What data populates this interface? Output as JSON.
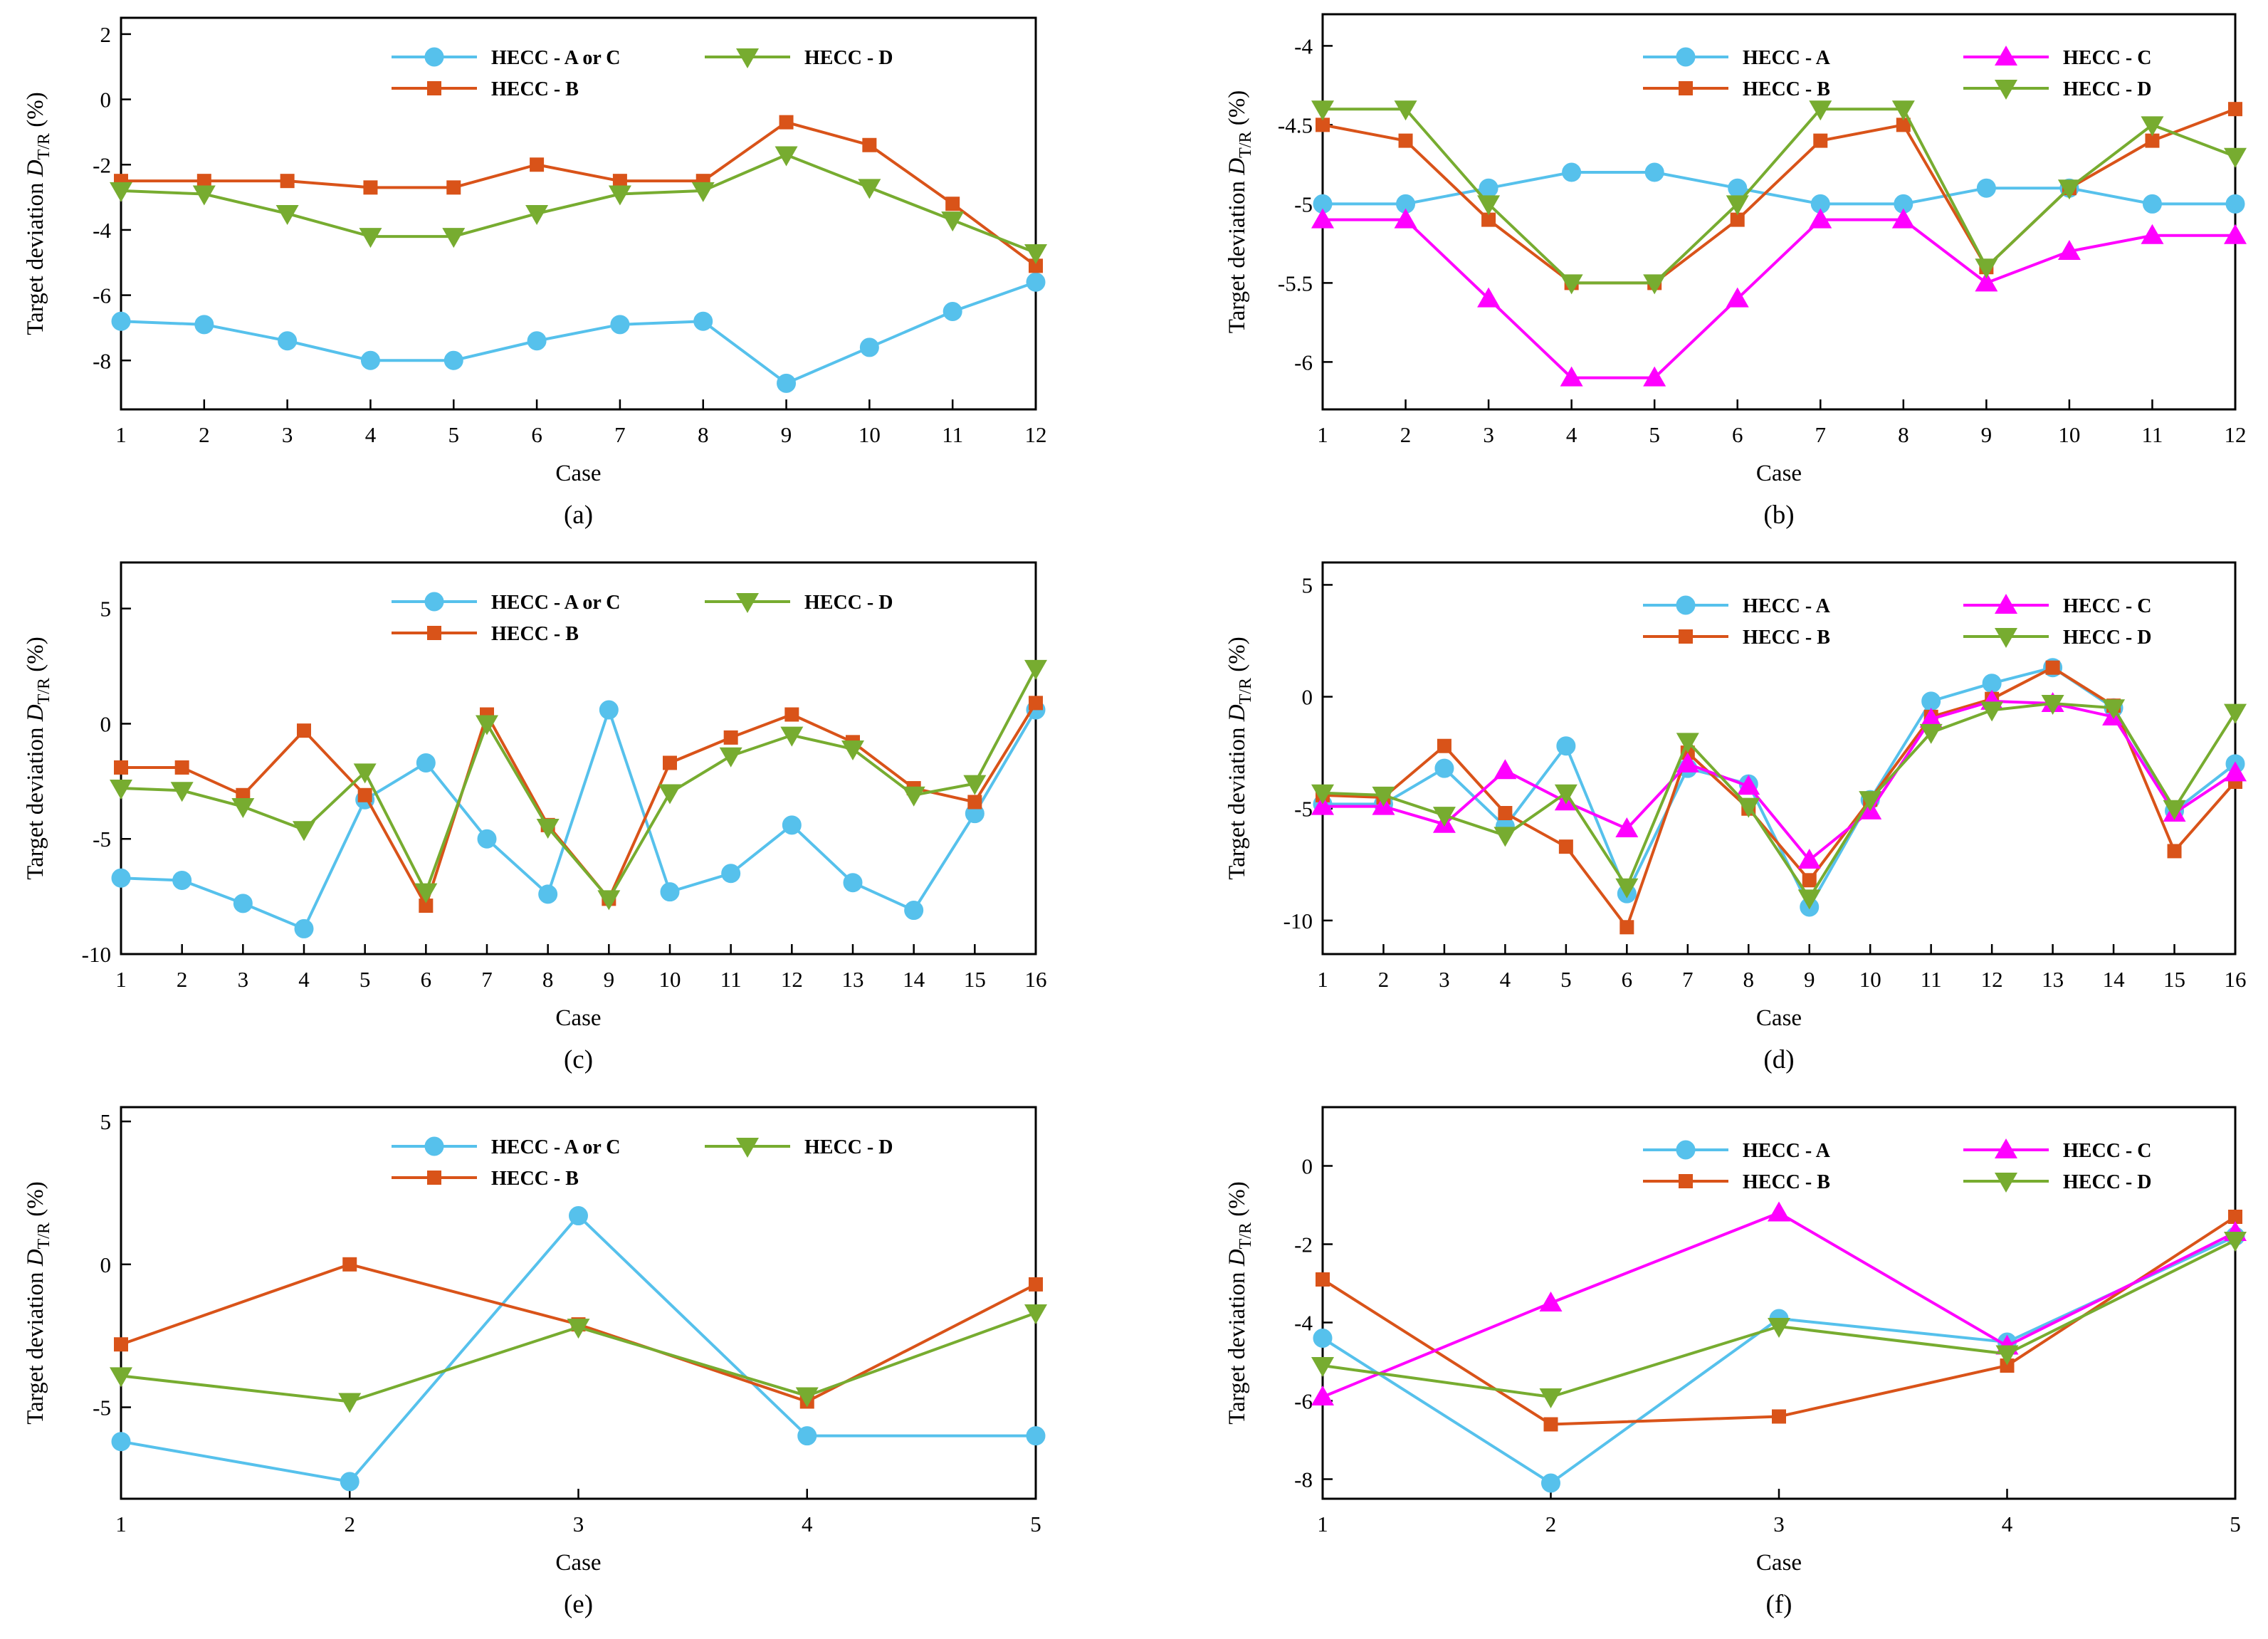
{
  "colors": {
    "A": "#56C1EC",
    "B": "#D95319",
    "C": "#FF00FF",
    "D": "#77AC30"
  },
  "chart_data": [
    {
      "id": "a",
      "type": "line",
      "caption": "(a)",
      "xlabel": "Case",
      "ylabel": "Target deviation D",
      "ylabel_sub": "T/R",
      "ylabel_unit": " (%)",
      "x": [
        1,
        2,
        3,
        4,
        5,
        6,
        7,
        8,
        9,
        10,
        11,
        12
      ],
      "ylim": [
        -9.5,
        2.5
      ],
      "yticks": [
        2,
        0,
        -2,
        -4,
        -6,
        -8
      ],
      "ytick_labels": [
        "2",
        "0",
        "-2",
        "-4",
        "-6",
        "-8"
      ],
      "series": [
        {
          "key": "A",
          "name": "HECC - A or C",
          "marker": "circle",
          "values": [
            -6.8,
            -6.9,
            -7.4,
            -8.0,
            -8.0,
            -7.4,
            -6.9,
            -6.8,
            -8.7,
            -7.6,
            -6.5,
            -5.6
          ]
        },
        {
          "key": "B",
          "name": "HECC - B",
          "marker": "square",
          "values": [
            -2.5,
            -2.5,
            -2.5,
            -2.7,
            -2.7,
            -2.0,
            -2.5,
            -2.5,
            -0.7,
            -1.4,
            -3.2,
            -5.1
          ]
        },
        {
          "key": "D",
          "name": "HECC - D",
          "marker": "tri-down",
          "values": [
            -2.8,
            -2.9,
            -3.5,
            -4.2,
            -4.2,
            -3.5,
            -2.9,
            -2.8,
            -1.7,
            -2.7,
            -3.7,
            -4.7
          ]
        }
      ],
      "legend_layout": [
        [
          "A",
          "D"
        ],
        [
          "B"
        ]
      ]
    },
    {
      "id": "b",
      "type": "line",
      "caption": "(b)",
      "xlabel": "Case",
      "ylabel": "Target deviation D",
      "ylabel_sub": "T/R",
      "ylabel_unit": " (%)",
      "x": [
        1,
        2,
        3,
        4,
        5,
        6,
        7,
        8,
        9,
        10,
        11,
        12
      ],
      "ylim": [
        -6.3,
        -3.8
      ],
      "yticks": [
        -4,
        -4.5,
        -5,
        -5.5,
        -6
      ],
      "ytick_labels": [
        "-4",
        "-4.5",
        "-5",
        "-5.5",
        "-6"
      ],
      "series": [
        {
          "key": "A",
          "name": "HECC - A",
          "marker": "circle",
          "values": [
            -5.0,
            -5.0,
            -4.9,
            -4.8,
            -4.8,
            -4.9,
            -5.0,
            -5.0,
            -4.9,
            -4.9,
            -5.0,
            -5.0
          ]
        },
        {
          "key": "B",
          "name": "HECC - B",
          "marker": "square",
          "values": [
            -4.5,
            -4.6,
            -5.1,
            -5.5,
            -5.5,
            -5.1,
            -4.6,
            -4.5,
            -5.4,
            -4.9,
            -4.6,
            -4.4
          ]
        },
        {
          "key": "C",
          "name": "HECC - C",
          "marker": "tri-up",
          "values": [
            -5.1,
            -5.1,
            -5.6,
            -6.1,
            -6.1,
            -5.6,
            -5.1,
            -5.1,
            -5.5,
            -5.3,
            -5.2,
            -5.2
          ]
        },
        {
          "key": "D",
          "name": "HECC - D",
          "marker": "tri-down",
          "values": [
            -4.4,
            -4.4,
            -5.0,
            -5.5,
            -5.5,
            -5.0,
            -4.4,
            -4.4,
            -5.4,
            -4.9,
            -4.5,
            -4.7
          ]
        }
      ],
      "legend_layout": [
        [
          "A",
          "C"
        ],
        [
          "B",
          "D"
        ]
      ]
    },
    {
      "id": "c",
      "type": "line",
      "caption": "(c)",
      "xlabel": "Case",
      "ylabel": "Target deviation D",
      "ylabel_sub": "T/R",
      "ylabel_unit": " (%)",
      "x": [
        1,
        2,
        3,
        4,
        5,
        6,
        7,
        8,
        9,
        10,
        11,
        12,
        13,
        14,
        15,
        16
      ],
      "ylim": [
        -10,
        7
      ],
      "yticks": [
        5,
        0,
        -5,
        -10
      ],
      "ytick_labels": [
        "5",
        "0",
        "-5",
        "-10"
      ],
      "series": [
        {
          "key": "A",
          "name": "HECC - A or C",
          "marker": "circle",
          "values": [
            -6.7,
            -6.8,
            -7.8,
            -8.9,
            -3.3,
            -1.7,
            -5.0,
            -7.4,
            0.6,
            -7.3,
            -6.5,
            -4.4,
            -6.9,
            -8.1,
            -3.9,
            0.6
          ]
        },
        {
          "key": "B",
          "name": "HECC - B",
          "marker": "square",
          "values": [
            -1.9,
            -1.9,
            -3.1,
            -0.3,
            -3.1,
            -7.9,
            0.4,
            -4.4,
            -7.6,
            -1.7,
            -0.6,
            0.4,
            -0.8,
            -2.8,
            -3.4,
            0.9
          ]
        },
        {
          "key": "D",
          "name": "HECC - D",
          "marker": "tri-down",
          "values": [
            -2.8,
            -2.9,
            -3.6,
            -4.6,
            -2.1,
            -7.3,
            0.0,
            -4.5,
            -7.6,
            -3.0,
            -1.4,
            -0.5,
            -1.1,
            -3.1,
            -2.6,
            2.4
          ]
        }
      ],
      "legend_layout": [
        [
          "A",
          "D"
        ],
        [
          "B"
        ]
      ]
    },
    {
      "id": "d",
      "type": "line",
      "caption": "(d)",
      "xlabel": "Case",
      "ylabel": "Target deviation D",
      "ylabel_sub": "T/R",
      "ylabel_unit": " (%)",
      "x": [
        1,
        2,
        3,
        4,
        5,
        6,
        7,
        8,
        9,
        10,
        11,
        12,
        13,
        14,
        15,
        16
      ],
      "ylim": [
        -11.5,
        6
      ],
      "yticks": [
        5,
        0,
        -5,
        -10
      ],
      "ytick_labels": [
        "5",
        "0",
        "-5",
        "-10"
      ],
      "series": [
        {
          "key": "A",
          "name": "HECC - A",
          "marker": "circle",
          "values": [
            -4.8,
            -4.8,
            -3.2,
            -5.8,
            -2.2,
            -8.8,
            -3.2,
            -3.9,
            -9.4,
            -4.6,
            -0.2,
            0.6,
            1.3,
            -0.5,
            -5.1,
            -3.0
          ]
        },
        {
          "key": "B",
          "name": "HECC - B",
          "marker": "square",
          "values": [
            -4.4,
            -4.5,
            -2.2,
            -5.2,
            -6.7,
            -10.3,
            -2.5,
            -5.0,
            -8.2,
            -4.6,
            -0.9,
            -0.1,
            1.3,
            -0.4,
            -6.9,
            -3.8
          ]
        },
        {
          "key": "C",
          "name": "HECC - C",
          "marker": "tri-up",
          "values": [
            -4.9,
            -4.9,
            -5.7,
            -3.3,
            -4.7,
            -5.9,
            -3.0,
            -4.0,
            -7.3,
            -5.1,
            -1.0,
            -0.2,
            -0.3,
            -0.9,
            -5.2,
            -3.4
          ]
        },
        {
          "key": "D",
          "name": "HECC - D",
          "marker": "tri-down",
          "values": [
            -4.3,
            -4.4,
            -5.3,
            -6.2,
            -4.3,
            -8.5,
            -2.0,
            -4.9,
            -9.0,
            -4.6,
            -1.6,
            -0.6,
            -0.3,
            -0.5,
            -5.0,
            -0.7
          ]
        }
      ],
      "legend_layout": [
        [
          "A",
          "C"
        ],
        [
          "B",
          "D"
        ]
      ]
    },
    {
      "id": "e",
      "type": "line",
      "caption": "(e)",
      "xlabel": "Case",
      "ylabel": "Target deviation D",
      "ylabel_sub": "T/R",
      "ylabel_unit": " (%)",
      "x": [
        1,
        2,
        3,
        4,
        5
      ],
      "ylim": [
        -8.2,
        5.5
      ],
      "yticks": [
        5,
        0,
        -5
      ],
      "ytick_labels": [
        "5",
        "0",
        "-5"
      ],
      "series": [
        {
          "key": "A",
          "name": "HECC - A or C",
          "marker": "circle",
          "values": [
            -6.2,
            -7.6,
            1.7,
            -6.0,
            -6.0
          ]
        },
        {
          "key": "B",
          "name": "HECC - B",
          "marker": "square",
          "values": [
            -2.8,
            0.0,
            -2.1,
            -4.8,
            -0.7
          ]
        },
        {
          "key": "D",
          "name": "HECC - D",
          "marker": "tri-down",
          "values": [
            -3.9,
            -4.8,
            -2.2,
            -4.6,
            -1.7
          ]
        }
      ],
      "legend_layout": [
        [
          "A",
          "D"
        ],
        [
          "B"
        ]
      ]
    },
    {
      "id": "f",
      "type": "line",
      "caption": "(f)",
      "xlabel": "Case",
      "ylabel": "Target deviation D",
      "ylabel_sub": "T/R",
      "ylabel_unit": " (%)",
      "x": [
        1,
        2,
        3,
        4,
        5
      ],
      "ylim": [
        -8.5,
        1.5
      ],
      "yticks": [
        0,
        -2,
        -4,
        -6,
        -8
      ],
      "ytick_labels": [
        "0",
        "-2",
        "-4",
        "-6",
        "-8"
      ],
      "series": [
        {
          "key": "A",
          "name": "HECC - A",
          "marker": "circle",
          "values": [
            -4.4,
            -8.1,
            -3.9,
            -4.5,
            -1.8
          ]
        },
        {
          "key": "B",
          "name": "HECC - B",
          "marker": "square",
          "values": [
            -2.9,
            -6.6,
            -6.4,
            -5.1,
            -1.3
          ]
        },
        {
          "key": "C",
          "name": "HECC - C",
          "marker": "tri-up",
          "values": [
            -5.9,
            -3.5,
            -1.2,
            -4.6,
            -1.7
          ]
        },
        {
          "key": "D",
          "name": "HECC - D",
          "marker": "tri-down",
          "values": [
            -5.1,
            -5.9,
            -4.1,
            -4.8,
            -1.9
          ]
        }
      ],
      "legend_layout": [
        [
          "A",
          "C"
        ],
        [
          "B",
          "D"
        ]
      ]
    }
  ]
}
